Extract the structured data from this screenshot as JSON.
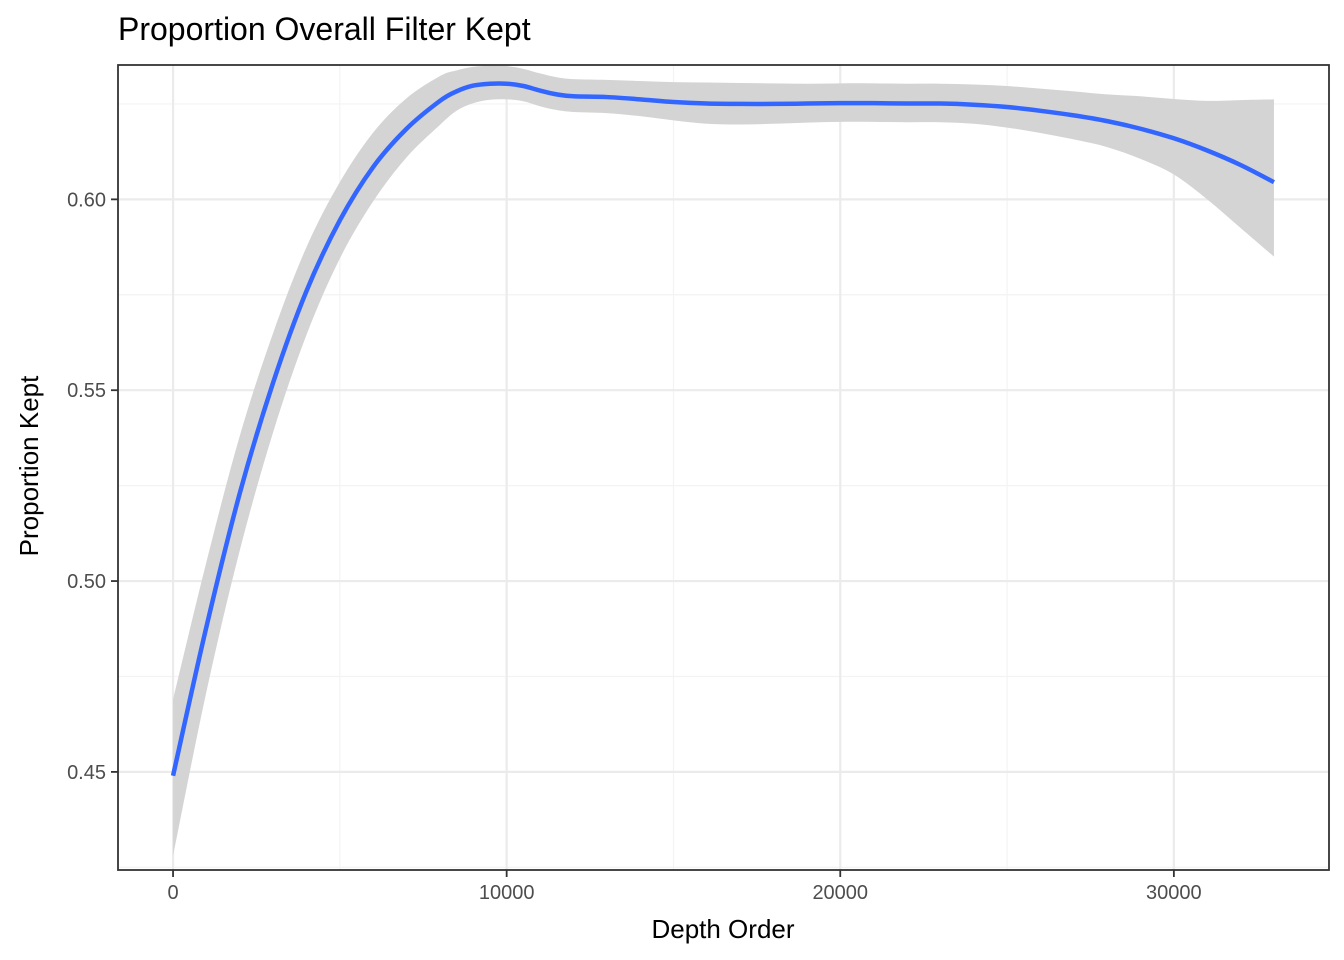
{
  "chart_data": {
    "type": "line",
    "title": "Proportion Overall Filter Kept",
    "xlabel": "Depth Order",
    "ylabel": "Proportion Kept",
    "xlim": [
      -1650,
      34650
    ],
    "ylim": [
      0.4243,
      0.6352
    ],
    "x_ticks": [
      0,
      10000,
      20000,
      30000
    ],
    "x_tick_labels": [
      "0",
      "10000",
      "20000",
      "30000"
    ],
    "y_ticks": [
      0.45,
      0.5,
      0.55,
      0.6
    ],
    "y_tick_labels": [
      "0.45",
      "0.50",
      "0.55",
      "0.60"
    ],
    "grid": true,
    "legend": "none",
    "colors": {
      "line": "#3366ff",
      "ribbon": "#d4d4d4",
      "grid_major": "#ebebeb",
      "grid_minor": "#f3f3f3",
      "panel_border": "#333333"
    },
    "series": [
      {
        "x": [
          0,
          1000,
          2000,
          3000,
          4000,
          5000,
          6000,
          7000,
          8000,
          8500,
          9000,
          9500,
          10000,
          10500,
          11000,
          11500,
          12000,
          13000,
          14000,
          15000,
          16000,
          17000,
          18000,
          19000,
          20000,
          21000,
          22000,
          23000,
          24000,
          25000,
          26000,
          27000,
          28000,
          29000,
          30000,
          31000,
          32000,
          33000
        ],
        "y": [
          0.449,
          0.488,
          0.523,
          0.552,
          0.576,
          0.5945,
          0.6085,
          0.6185,
          0.6258,
          0.6283,
          0.6298,
          0.6303,
          0.6303,
          0.6297,
          0.6285,
          0.6275,
          0.627,
          0.6268,
          0.6262,
          0.6255,
          0.6251,
          0.625,
          0.625,
          0.6251,
          0.6252,
          0.6252,
          0.6251,
          0.6251,
          0.6248,
          0.6242,
          0.6232,
          0.622,
          0.6205,
          0.6185,
          0.616,
          0.6128,
          0.609,
          0.6045
        ],
        "lower": [
          0.428,
          0.471,
          0.508,
          0.539,
          0.5645,
          0.5845,
          0.5995,
          0.611,
          0.6195,
          0.6232,
          0.6252,
          0.6261,
          0.6262,
          0.6257,
          0.6244,
          0.6234,
          0.6229,
          0.6226,
          0.6218,
          0.6207,
          0.6198,
          0.6196,
          0.6198,
          0.6201,
          0.6203,
          0.6203,
          0.6202,
          0.6202,
          0.6198,
          0.6188,
          0.6174,
          0.6157,
          0.6137,
          0.6106,
          0.6065,
          0.6,
          0.5925,
          0.585
        ],
        "upper": [
          0.469,
          0.505,
          0.538,
          0.565,
          0.5875,
          0.6045,
          0.6175,
          0.6265,
          0.6323,
          0.6338,
          0.6347,
          0.635,
          0.6349,
          0.6342,
          0.633,
          0.632,
          0.6315,
          0.6313,
          0.631,
          0.6307,
          0.6306,
          0.6305,
          0.6304,
          0.6303,
          0.6304,
          0.6304,
          0.6303,
          0.6303,
          0.6301,
          0.6297,
          0.629,
          0.6283,
          0.6275,
          0.627,
          0.6263,
          0.6258,
          0.626,
          0.6262
        ]
      }
    ]
  }
}
